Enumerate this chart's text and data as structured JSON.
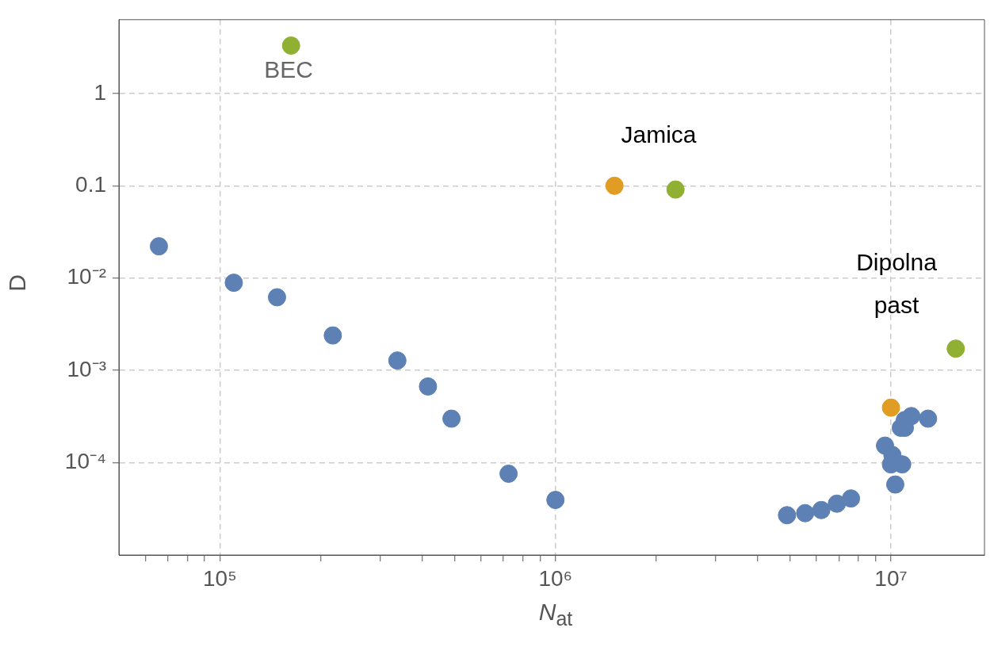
{
  "chart_data": {
    "type": "scatter",
    "xlabel": "N$_{at}$",
    "ylabel": "D",
    "log": "xy",
    "grid": true,
    "legend": false,
    "marker": "circle",
    "xlim": [
      50000,
      19000000
    ],
    "ylim": [
      1e-05,
      6.3
    ],
    "xticks": [
      {
        "value": 60000,
        "label": null
      },
      {
        "value": 70000,
        "label": null
      },
      {
        "value": 80000,
        "label": null
      },
      {
        "value": 90000,
        "label": null
      },
      {
        "value": 100000,
        "label": "10⁵"
      },
      {
        "value": 200000,
        "label": null
      },
      {
        "value": 300000,
        "label": null
      },
      {
        "value": 400000,
        "label": null
      },
      {
        "value": 500000,
        "label": null
      },
      {
        "value": 600000,
        "label": null
      },
      {
        "value": 700000,
        "label": null
      },
      {
        "value": 800000,
        "label": null
      },
      {
        "value": 900000,
        "label": null
      },
      {
        "value": 1000000,
        "label": "10⁶"
      },
      {
        "value": 2000000,
        "label": null
      },
      {
        "value": 3000000,
        "label": null
      },
      {
        "value": 4000000,
        "label": null
      },
      {
        "value": 5000000,
        "label": null
      },
      {
        "value": 6000000,
        "label": null
      },
      {
        "value": 7000000,
        "label": null
      },
      {
        "value": 8000000,
        "label": null
      },
      {
        "value": 9000000,
        "label": null
      },
      {
        "value": 10000000,
        "label": "10⁷"
      }
    ],
    "yticks": [
      {
        "value": 0.0001,
        "label": "10⁻⁴"
      },
      {
        "value": 0.001,
        "label": "10⁻³"
      },
      {
        "value": 0.01,
        "label": "10⁻²"
      },
      0.1,
      1
    ],
    "series": [
      {
        "color": "#5e81b5",
        "x": [
          65800,
          110000,
          148000,
          217000,
          338000,
          417000,
          490000,
          725000,
          1000000,
          4900000,
          5550000,
          6200000,
          6900000,
          7600000,
          9600000,
          10100000,
          10000000,
          10800000,
          10300000,
          10700000,
          11000000,
          11000000,
          11500000,
          12900000
        ],
        "values": [
          0.0221,
          0.0089,
          0.0062,
          0.00239,
          0.00128,
          0.00067,
          0.0003,
          7.6e-05,
          3.95e-05,
          2.7e-05,
          2.84e-05,
          3.07e-05,
          3.6e-05,
          4.1e-05,
          0.000153,
          0.000121,
          9.6e-05,
          9.6e-05,
          5.8e-05,
          0.000239,
          0.000239,
          0.00029,
          0.00032,
          0.0003
        ]
      },
      {
        "color": "#e19c24",
        "x": [
          1500000,
          10000000
        ],
        "values": [
          0.1,
          0.000395
        ]
      },
      {
        "color": "#8fb032",
        "x": [
          163000,
          2280000,
          15600000
        ],
        "values": [
          3.3,
          0.091,
          0.00172
        ]
      }
    ],
    "annotations": [
      "BEC",
      "Jamica",
      "Dipolna\npast"
    ]
  }
}
